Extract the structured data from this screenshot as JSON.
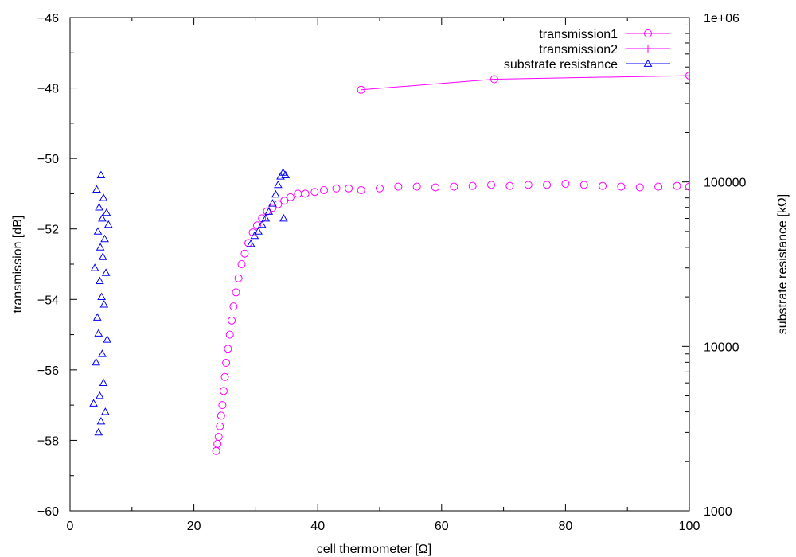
{
  "chart_data": {
    "type": "scatter",
    "xlabel": "cell thermometer [Ω]",
    "ylabel": "transmission [dB]",
    "y2label": "substrate resistance [kΩ]",
    "xlim": [
      0,
      100
    ],
    "ylim": [
      -60,
      -46
    ],
    "y2lim": [
      1000,
      1000000
    ],
    "y2scale": "log",
    "grid": false,
    "legend_position": "top-right",
    "xticks": [
      "0",
      "20",
      "40",
      "60",
      "80",
      "100"
    ],
    "yticks": [
      "-60",
      "-58",
      "-56",
      "-54",
      "-52",
      "-50",
      "-48",
      "-46"
    ],
    "y2ticks": [
      "1000",
      "10000",
      "100000",
      "1e+06"
    ],
    "colors": {
      "transmission1": "#ff00ff",
      "transmission2": "#ff00ff",
      "substrate": "#0000ff"
    },
    "series": [
      {
        "name": "transmission1",
        "axis": "left",
        "marker": "circle",
        "points": [
          [
            23.6,
            -58.3
          ],
          [
            23.8,
            -58.1
          ],
          [
            24.0,
            -57.9
          ],
          [
            24.2,
            -57.6
          ],
          [
            24.4,
            -57.3
          ],
          [
            24.6,
            -57.0
          ],
          [
            24.8,
            -56.6
          ],
          [
            25.0,
            -56.2
          ],
          [
            25.2,
            -55.8
          ],
          [
            25.5,
            -55.4
          ],
          [
            25.8,
            -55.0
          ],
          [
            26.1,
            -54.6
          ],
          [
            26.4,
            -54.2
          ],
          [
            26.8,
            -53.8
          ],
          [
            27.2,
            -53.4
          ],
          [
            27.7,
            -53.0
          ],
          [
            28.2,
            -52.7
          ],
          [
            28.8,
            -52.4
          ],
          [
            29.5,
            -52.1
          ],
          [
            30.2,
            -51.9
          ],
          [
            31.0,
            -51.7
          ],
          [
            31.8,
            -51.5
          ],
          [
            32.7,
            -51.4
          ],
          [
            33.6,
            -51.3
          ],
          [
            34.6,
            -51.2
          ],
          [
            35.6,
            -51.1
          ],
          [
            36.8,
            -51.0
          ],
          [
            38.0,
            -51.0
          ],
          [
            39.5,
            -50.95
          ],
          [
            41.0,
            -50.9
          ],
          [
            43.0,
            -50.85
          ],
          [
            45.0,
            -50.85
          ],
          [
            47.0,
            -50.9
          ],
          [
            50.0,
            -50.85
          ],
          [
            53.0,
            -50.8
          ],
          [
            56.0,
            -50.8
          ],
          [
            59.0,
            -50.82
          ],
          [
            62.0,
            -50.8
          ],
          [
            65.0,
            -50.78
          ],
          [
            68.0,
            -50.75
          ],
          [
            71.0,
            -50.78
          ],
          [
            74.0,
            -50.75
          ],
          [
            77.0,
            -50.75
          ],
          [
            80.0,
            -50.72
          ],
          [
            83.0,
            -50.75
          ],
          [
            86.0,
            -50.78
          ],
          [
            89.0,
            -50.8
          ],
          [
            92.0,
            -50.82
          ],
          [
            95.0,
            -50.8
          ],
          [
            98.0,
            -50.78
          ],
          [
            100.0,
            -50.8
          ]
        ]
      },
      {
        "name": "transmission2",
        "axis": "left",
        "marker": "circle",
        "points": [
          [
            47.0,
            -48.05
          ],
          [
            68.5,
            -47.75
          ],
          [
            100.0,
            -47.65
          ]
        ]
      },
      {
        "name": "substrate resistance",
        "axis": "right",
        "marker": "triangle",
        "points": [
          [
            3.8,
            4500
          ],
          [
            4.0,
            30000
          ],
          [
            4.2,
            8000
          ],
          [
            4.3,
            90000
          ],
          [
            4.4,
            15000
          ],
          [
            4.5,
            50000
          ],
          [
            4.6,
            3000
          ],
          [
            4.6,
            12000
          ],
          [
            4.7,
            70000
          ],
          [
            4.8,
            25000
          ],
          [
            4.8,
            5000
          ],
          [
            4.9,
            40000
          ],
          [
            5.0,
            110000
          ],
          [
            5.0,
            3500
          ],
          [
            5.1,
            20000
          ],
          [
            5.2,
            60000
          ],
          [
            5.2,
            9000
          ],
          [
            5.3,
            35000
          ],
          [
            5.4,
            80000
          ],
          [
            5.4,
            6000
          ],
          [
            5.5,
            18000
          ],
          [
            5.6,
            45000
          ],
          [
            5.7,
            4000
          ],
          [
            5.8,
            28000
          ],
          [
            5.9,
            65000
          ],
          [
            6.0,
            11000
          ],
          [
            6.2,
            55000
          ],
          [
            29.2,
            42000
          ],
          [
            29.8,
            47000
          ],
          [
            30.4,
            50000
          ],
          [
            31.0,
            55000
          ],
          [
            31.6,
            60000
          ],
          [
            32.1,
            66000
          ],
          [
            32.7,
            74000
          ],
          [
            33.2,
            84000
          ],
          [
            33.6,
            96000
          ],
          [
            34.0,
            108000
          ],
          [
            34.4,
            114000
          ],
          [
            34.8,
            110000
          ],
          [
            34.5,
            60000
          ]
        ]
      }
    ]
  }
}
